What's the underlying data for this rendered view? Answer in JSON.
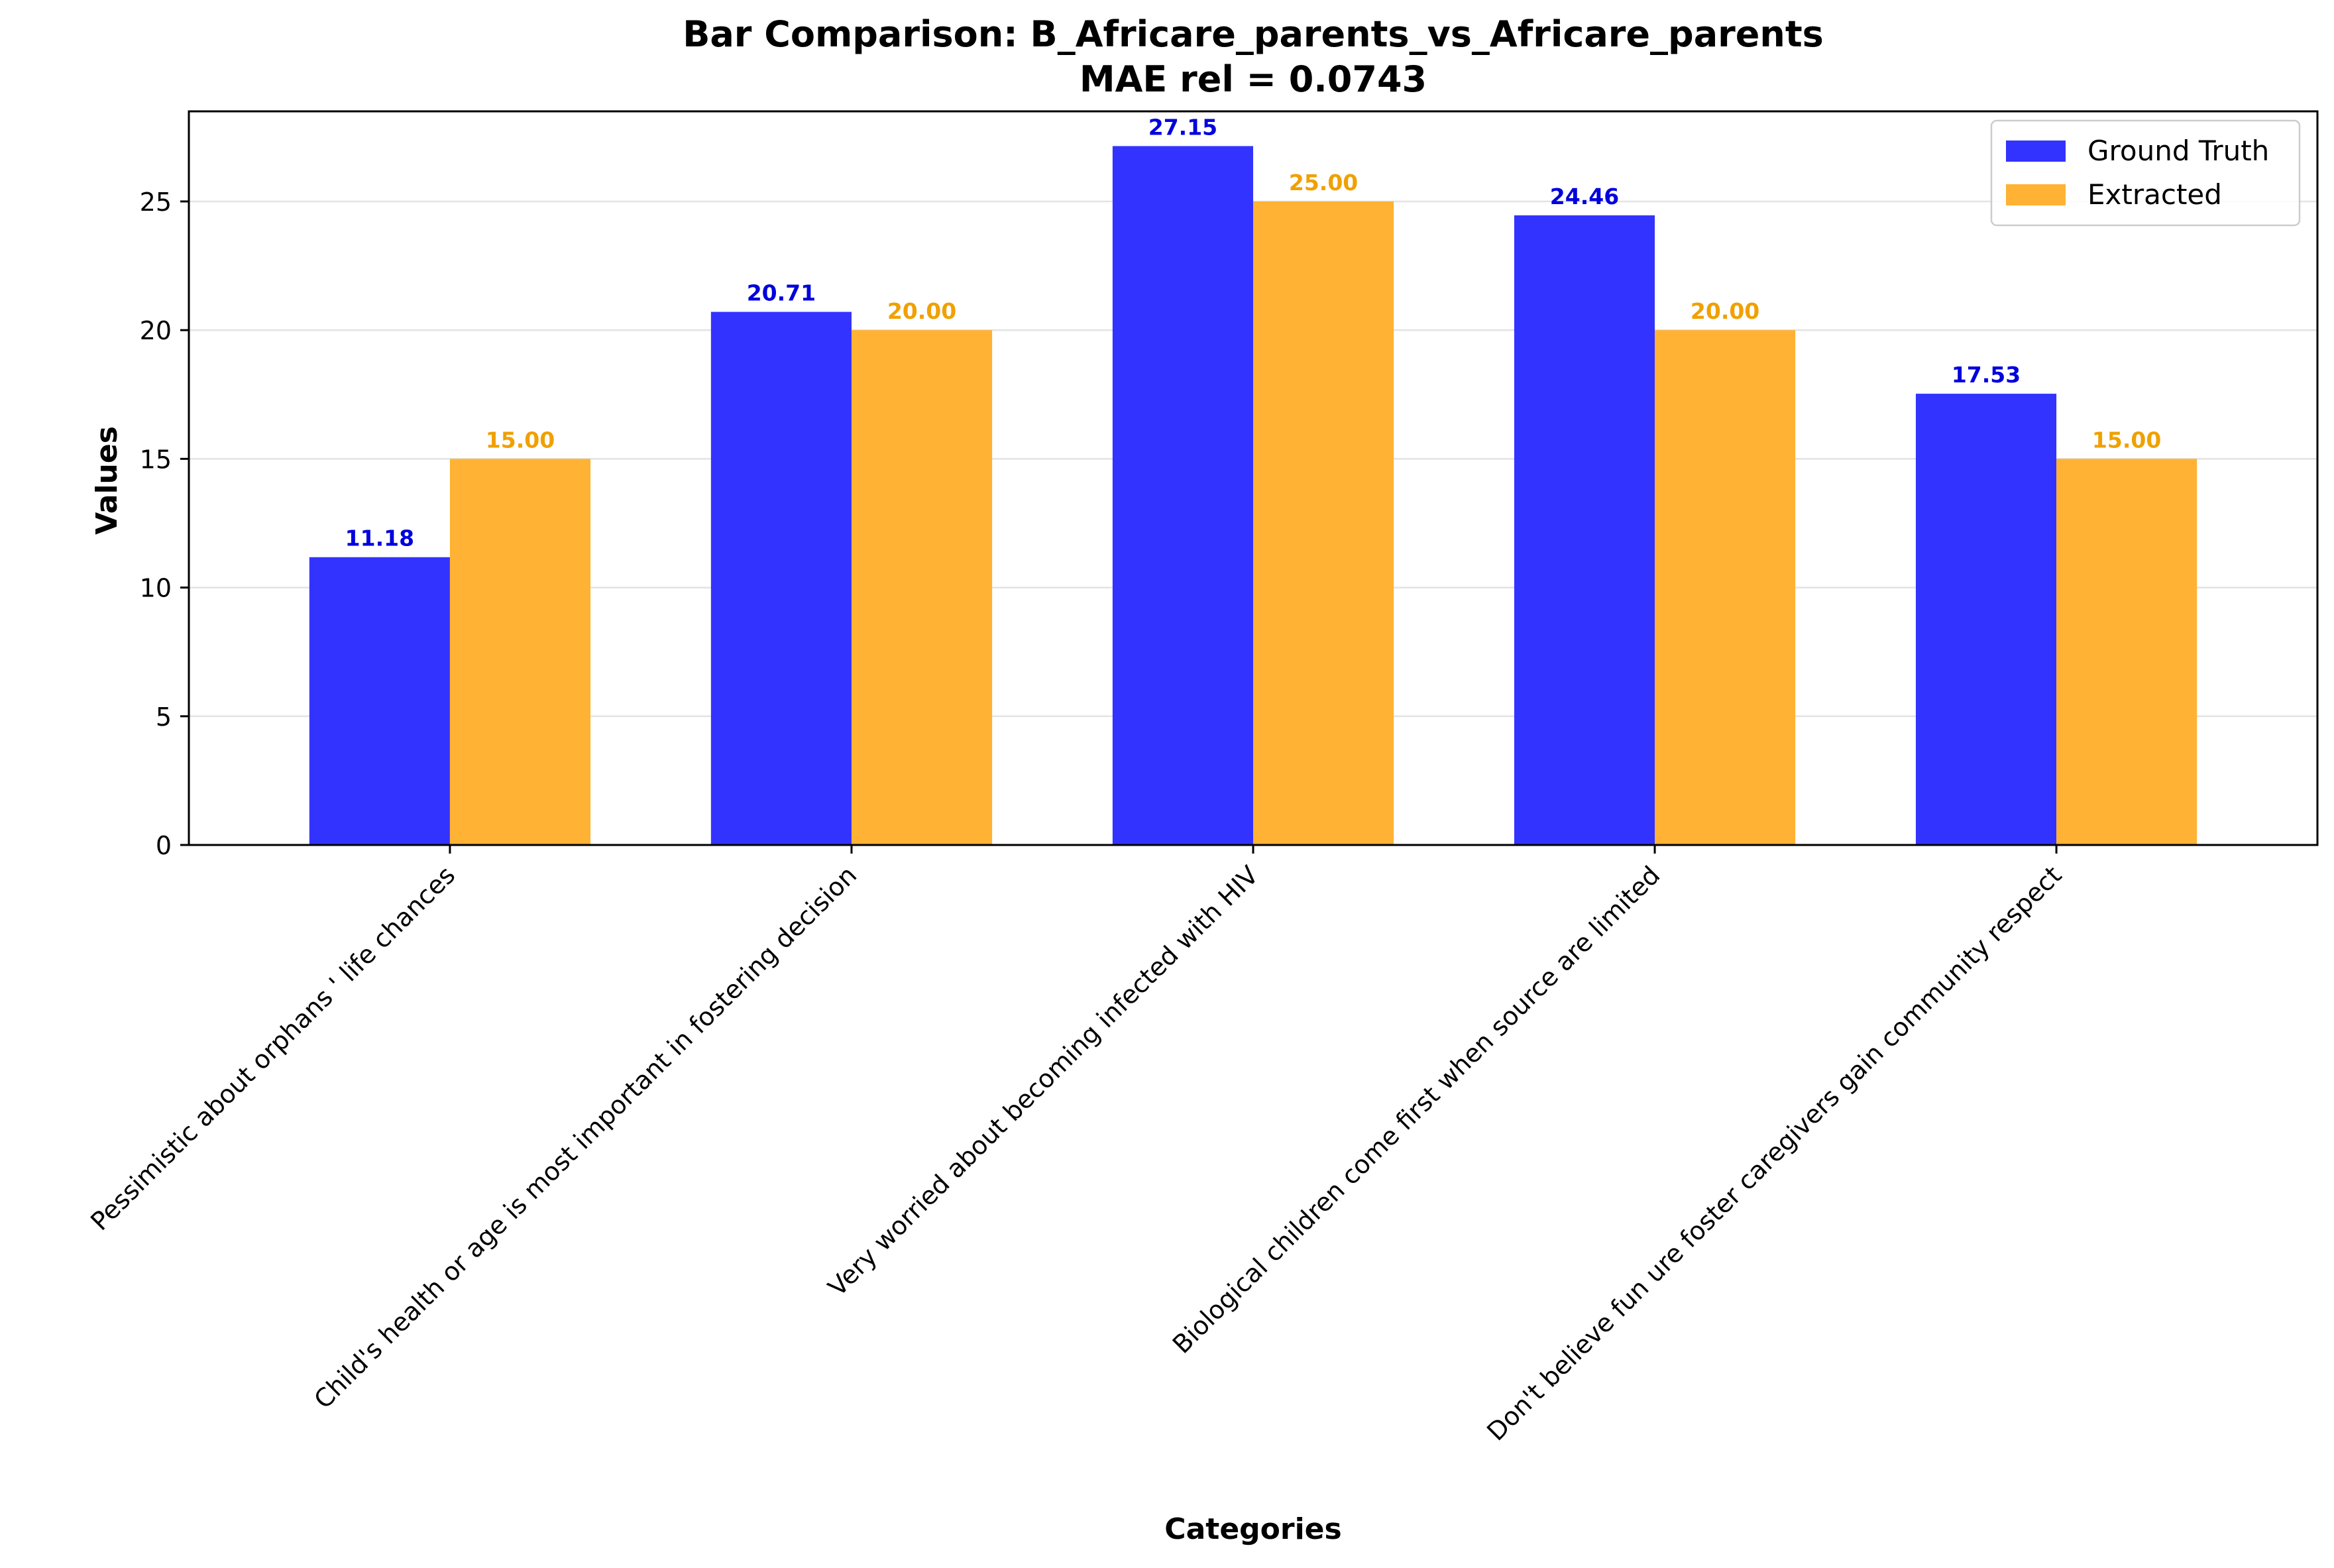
{
  "chart_data": {
    "type": "bar",
    "title": "Bar Comparison: B_Africare_parents_vs_Africare_parents",
    "subtitle": "MAE rel = 0.0743",
    "xlabel": "Categories",
    "ylabel": "Values",
    "categories": [
      "Pessimistic about orphans ' life chances",
      "Child's health or age is most important in fostering decision",
      "Very worried about becoming infected with HIV",
      "Biological children come first when source are limited",
      "Don't believe fun ure foster caregivers gain community respect"
    ],
    "series": [
      {
        "name": "Ground Truth",
        "values": [
          11.18,
          20.71,
          27.15,
          24.46,
          17.53
        ],
        "labels": [
          "11.18",
          "20.71",
          "27.15",
          "24.46",
          "17.53"
        ],
        "color": "#3333ff",
        "label_color": "#0000dd"
      },
      {
        "name": "Extracted",
        "values": [
          15.0,
          20.0,
          25.0,
          20.0,
          15.0
        ],
        "labels": [
          "15.00",
          "20.00",
          "25.00",
          "20.00",
          "15.00"
        ],
        "color": "#ffb233",
        "label_color": "#f0a000"
      }
    ],
    "ylim": [
      0,
      28.5
    ],
    "yticks": [
      0,
      5,
      10,
      15,
      20,
      25
    ],
    "ytick_labels": [
      "0",
      "5",
      "10",
      "15",
      "20",
      "25"
    ],
    "grid": true,
    "grid_axis": "y",
    "legend_position": "top-right"
  }
}
